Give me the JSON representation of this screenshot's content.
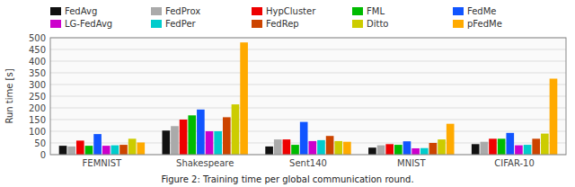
{
  "chart_data": {
    "type": "bar",
    "y_label": "Run time [s]",
    "caption": "Figure 2: Training time per global communication round.",
    "categories": [
      "FEMNIST",
      "Shakespeare",
      "Sent140",
      "MNIST",
      "CIFAR-10"
    ],
    "series": [
      {
        "name": "FedAvg",
        "color": "#111111",
        "values": [
          38,
          103,
          35,
          30,
          45
        ]
      },
      {
        "name": "FedProx",
        "color": "#aaaaaa",
        "values": [
          35,
          122,
          65,
          40,
          55
        ]
      },
      {
        "name": "HypCluster",
        "color": "#ee0000",
        "values": [
          60,
          150,
          65,
          45,
          68
        ]
      },
      {
        "name": "FML",
        "color": "#00bb00",
        "values": [
          38,
          168,
          42,
          42,
          68
        ]
      },
      {
        "name": "FedMe",
        "color": "#1155ff",
        "values": [
          88,
          193,
          140,
          57,
          93
        ]
      },
      {
        "name": "LG-FedAvg",
        "color": "#cc00cc",
        "values": [
          38,
          100,
          58,
          27,
          40
        ]
      },
      {
        "name": "FedPer",
        "color": "#00cccc",
        "values": [
          40,
          100,
          62,
          28,
          42
        ]
      },
      {
        "name": "FedRep",
        "color": "#cc4400",
        "values": [
          42,
          160,
          80,
          50,
          68
        ]
      },
      {
        "name": "Ditto",
        "color": "#cccc00",
        "values": [
          68,
          215,
          58,
          65,
          90
        ]
      },
      {
        "name": "pFedMe",
        "color": "#ffaa00",
        "values": [
          52,
          480,
          55,
          132,
          325
        ]
      }
    ],
    "ylim": [
      0,
      500
    ],
    "yticks": [
      0,
      50,
      100,
      150,
      200,
      250,
      300,
      350,
      400,
      450,
      500
    ],
    "grid": true,
    "legend": "top"
  }
}
